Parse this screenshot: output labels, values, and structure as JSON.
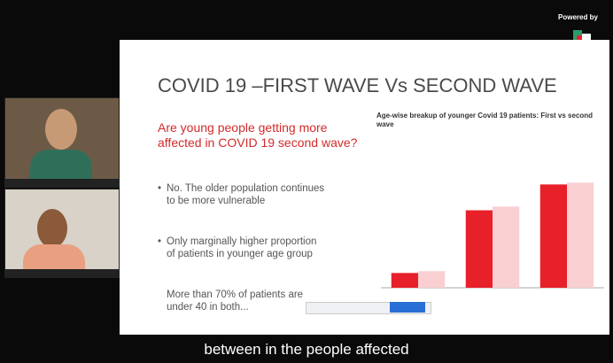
{
  "header": {
    "powered_by": "Powered by"
  },
  "slide": {
    "title": "COVID 19 –FIRST WAVE Vs SECOND WAVE",
    "question": "Are young people getting more affected in COVID 19 second wave?",
    "bullets": [
      "No. The older population continues to be more vulnerable",
      "Only marginally higher proportion of patients in younger age group",
      "More than 70% of patients are under 40 in both..."
    ]
  },
  "caption": "between in the people affected",
  "chart_data": {
    "type": "bar",
    "title": "Age-wise breakup of younger Covid 19 patients: First vs second wave",
    "categories": [
      null,
      null,
      null
    ],
    "series": [
      {
        "color": "#e8202a",
        "values": [
          8,
          42,
          56
        ]
      },
      {
        "color": "#f9cfd2",
        "values": [
          9,
          44,
          57
        ]
      }
    ],
    "ylim": [
      0,
      60
    ]
  }
}
